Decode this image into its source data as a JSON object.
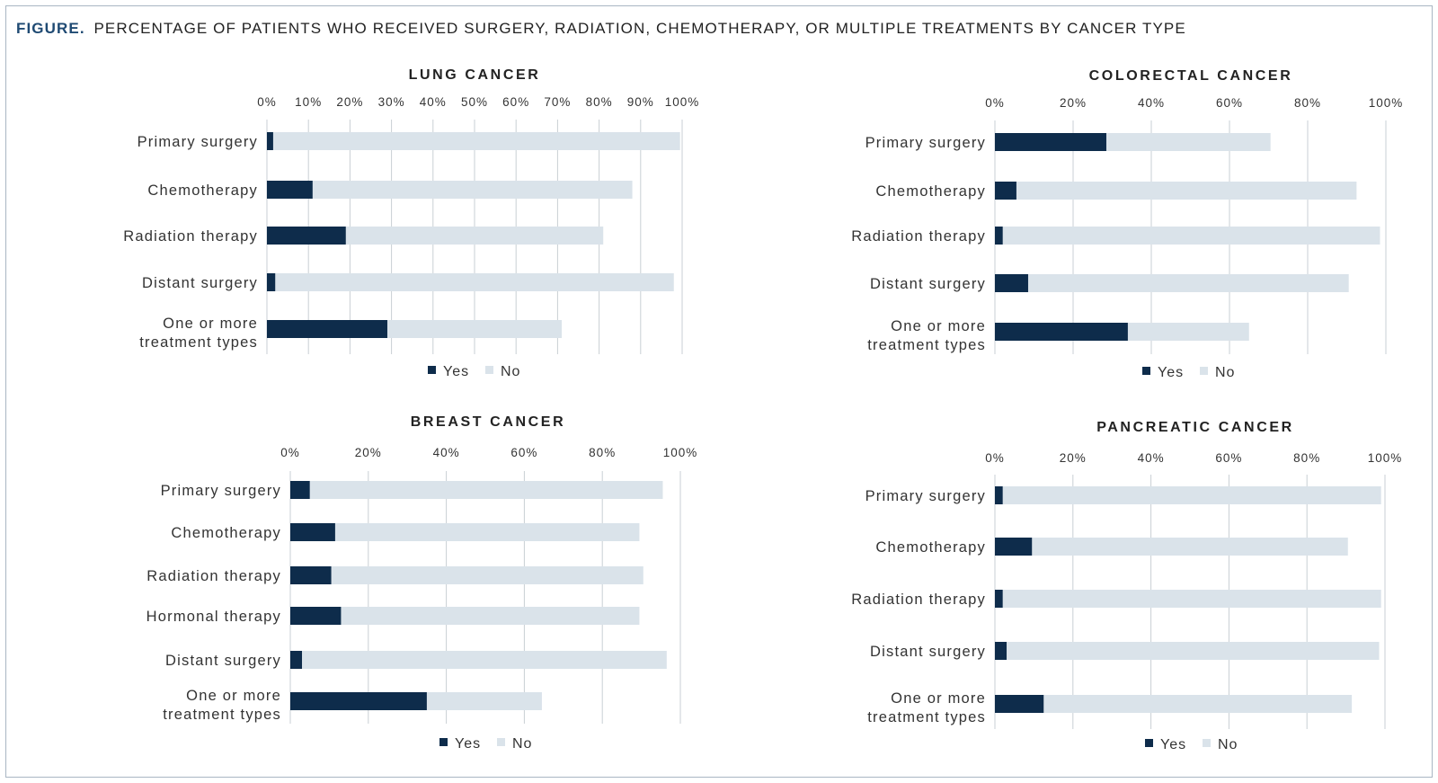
{
  "figure": {
    "label": "FIGURE.",
    "title": "PERCENTAGE OF PATIENTS WHO RECEIVED SURGERY, RADIATION, CHEMOTHERAPY, OR MULTIPLE TREATMENTS BY CANCER TYPE"
  },
  "colors": {
    "yes": "#0e2c4b",
    "no": "#dae3ea",
    "grid": "#c9cfd4"
  },
  "chart_data": [
    {
      "id": "lung",
      "type": "bar",
      "orientation": "horizontal",
      "stacked": true,
      "title": "LUNG CANCER",
      "categories": [
        "Primary surgery",
        "Chemotherapy",
        "Radiation therapy",
        "Distant surgery",
        "One or more treatment types"
      ],
      "series": [
        {
          "name": "Yes",
          "values": [
            1.5,
            11,
            19,
            2,
            29
          ]
        },
        {
          "name": "No",
          "values": [
            98,
            77,
            62,
            96,
            42
          ]
        }
      ],
      "xlim": [
        0,
        100
      ],
      "ticks": [
        "0%",
        "10%",
        "20%",
        "30%",
        "40%",
        "50%",
        "60%",
        "70%",
        "80%",
        "90%",
        "100%"
      ],
      "grid": true,
      "legend_position": "bottom"
    },
    {
      "id": "colorectal",
      "type": "bar",
      "orientation": "horizontal",
      "stacked": true,
      "title": "COLORECTAL CANCER",
      "categories": [
        "Primary surgery",
        "Chemotherapy",
        "Radiation therapy",
        "Distant surgery",
        "One or more treatment types"
      ],
      "series": [
        {
          "name": "Yes",
          "values": [
            28.5,
            5.5,
            2,
            8.5,
            34
          ]
        },
        {
          "name": "No",
          "values": [
            42,
            87,
            96.5,
            82,
            31
          ]
        }
      ],
      "xlim": [
        0,
        100
      ],
      "ticks": [
        "0%",
        "20%",
        "40%",
        "60%",
        "80%",
        "100%"
      ],
      "grid": true,
      "legend_position": "bottom"
    },
    {
      "id": "breast",
      "type": "bar",
      "orientation": "horizontal",
      "stacked": true,
      "title": "BREAST CANCER",
      "categories": [
        "Primary surgery",
        "Chemotherapy",
        "Radiation therapy",
        "Hormonal therapy",
        "Distant surgery",
        "One or more treatment types"
      ],
      "series": [
        {
          "name": "Yes",
          "values": [
            5,
            11.5,
            10.5,
            13,
            3,
            35
          ]
        },
        {
          "name": "No",
          "values": [
            90.5,
            78,
            80,
            76.5,
            93.5,
            29.5
          ]
        }
      ],
      "xlim": [
        0,
        100
      ],
      "ticks": [
        "0%",
        "20%",
        "40%",
        "60%",
        "80%",
        "100%"
      ],
      "grid": true,
      "legend_position": "bottom"
    },
    {
      "id": "pancreatic",
      "type": "bar",
      "orientation": "horizontal",
      "stacked": true,
      "title": "PANCREATIC CANCER",
      "categories": [
        "Primary surgery",
        "Chemotherapy",
        "Radiation therapy",
        "Distant surgery",
        "One or more treatment types"
      ],
      "series": [
        {
          "name": "Yes",
          "values": [
            2,
            9.5,
            2,
            3,
            12.5
          ]
        },
        {
          "name": "No",
          "values": [
            97,
            81,
            97,
            95.5,
            79
          ]
        }
      ],
      "xlim": [
        0,
        100
      ],
      "ticks": [
        "0%",
        "20%",
        "40%",
        "60%",
        "80%",
        "100%"
      ],
      "grid": true,
      "legend_position": "bottom"
    }
  ]
}
